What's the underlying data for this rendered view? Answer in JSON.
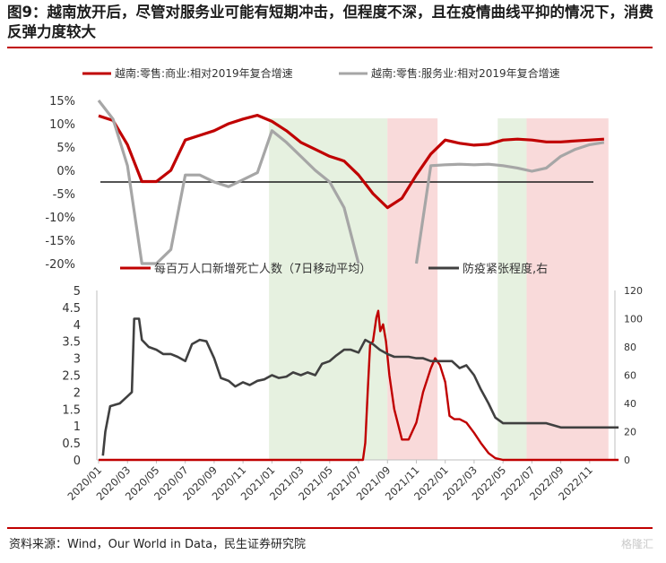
{
  "title": "图9：越南放开后，尽管对服务业可能有短期冲击，但程度不深，且在疫情曲线平抑的情况下，消费反弹力度较大",
  "source": "资料来源：Wind，Our World in Data，民生证券研究院",
  "watermark": "格隆汇",
  "colors": {
    "red": "#c00000",
    "gray": "#a6a6a6",
    "dark": "#404040",
    "green_band": "#e2efda",
    "red_band": "#f8d3d3",
    "accent": "#c00000"
  },
  "chart_data": [
    {
      "type": "line",
      "ylim": [
        -20,
        15
      ],
      "y_ticks": [
        "15%",
        "10%",
        "5%",
        "0%",
        "-5%",
        "-10%",
        "-15%",
        "-20%"
      ],
      "x_range": [
        "2020-01",
        "2022-12"
      ],
      "reference_line": -2.5,
      "series": [
        {
          "name": "越南:零售:商业:相对2019年复合增速",
          "color": "#c00000",
          "points": [
            [
              "2020-01",
              11.7
            ],
            [
              "2020-02",
              10.7
            ],
            [
              "2020-03",
              5.5
            ],
            [
              "2020-04",
              -2.4
            ],
            [
              "2020-05",
              -2.4
            ],
            [
              "2020-06",
              0
            ],
            [
              "2020-07",
              6.5
            ],
            [
              "2020-08",
              7.5
            ],
            [
              "2020-09",
              8.5
            ],
            [
              "2020-10",
              10
            ],
            [
              "2020-11",
              11
            ],
            [
              "2020-12",
              11.8
            ],
            [
              "2021-01",
              10.5
            ],
            [
              "2021-02",
              8.5
            ],
            [
              "2021-03",
              6
            ],
            [
              "2021-04",
              4.5
            ],
            [
              "2021-05",
              3
            ],
            [
              "2021-06",
              2
            ],
            [
              "2021-07",
              -1
            ],
            [
              "2021-08",
              -5
            ],
            [
              "2021-09",
              -8
            ],
            [
              "2021-10",
              -6
            ],
            [
              "2021-11",
              -1
            ],
            [
              "2021-12",
              3.5
            ],
            [
              "2022-01",
              6.5
            ],
            [
              "2022-02",
              5.8
            ],
            [
              "2022-03",
              5.4
            ],
            [
              "2022-04",
              5.6
            ],
            [
              "2022-05",
              6.5
            ],
            [
              "2022-06",
              6.7
            ],
            [
              "2022-07",
              6.5
            ],
            [
              "2022-08",
              6.1
            ],
            [
              "2022-09",
              6.1
            ],
            [
              "2022-10",
              6.3
            ],
            [
              "2022-11",
              6.5
            ],
            [
              "2022-12",
              6.7
            ]
          ]
        },
        {
          "name": "越南:零售:服务业:相对2019年复合增速",
          "color": "#a6a6a6",
          "points": [
            [
              "2020-01",
              15
            ],
            [
              "2020-02",
              11
            ],
            [
              "2020-03",
              1
            ],
            [
              "2020-04",
              -20
            ],
            [
              "2020-05",
              -20
            ],
            [
              "2020-06",
              -17
            ],
            [
              "2020-07",
              -1
            ],
            [
              "2020-08",
              -1
            ],
            [
              "2020-09",
              -2.5
            ],
            [
              "2020-10",
              -3.5
            ],
            [
              "2020-11",
              -2
            ],
            [
              "2020-12",
              -0.5
            ],
            [
              "2021-01",
              8.5
            ],
            [
              "2021-02",
              6
            ],
            [
              "2021-03",
              3
            ],
            [
              "2021-04",
              0
            ],
            [
              "2021-05",
              -2.5
            ],
            [
              "2021-06",
              -8
            ],
            [
              "2021-07",
              -20
            ],
            [
              "2021-11",
              -20
            ],
            [
              "2021-12",
              1
            ],
            [
              "2022-01",
              1.2
            ],
            [
              "2022-02",
              1.3
            ],
            [
              "2022-03",
              1.2
            ],
            [
              "2022-04",
              1.3
            ],
            [
              "2022-05",
              1
            ],
            [
              "2022-06",
              0.5
            ],
            [
              "2022-07",
              -0.2
            ],
            [
              "2022-08",
              0.5
            ],
            [
              "2022-09",
              3
            ],
            [
              "2022-10",
              4.5
            ],
            [
              "2022-11",
              5.5
            ],
            [
              "2022-12",
              6
            ]
          ]
        }
      ]
    },
    {
      "type": "line",
      "ylim_left": [
        0,
        5
      ],
      "ylim_right": [
        0,
        120
      ],
      "y_ticks_left": [
        "5",
        "4.5",
        "4",
        "3.5",
        "3",
        "2.5",
        "2",
        "1.5",
        "1",
        "0.5",
        "0"
      ],
      "y_ticks_right": [
        "120",
        "100",
        "80",
        "60",
        "40",
        "20",
        "0"
      ],
      "x_ticks": [
        "2020/01",
        "2020/03",
        "2020/05",
        "2020/07",
        "2020/09",
        "2020/11",
        "2021/01",
        "2021/03",
        "2021/05",
        "2021/07",
        "2021/09",
        "2021/11",
        "2022/01",
        "2022/03",
        "2022/05",
        "2022/07",
        "2022/09",
        "2022/11"
      ],
      "bands": [
        {
          "from": "2020-12-25",
          "to": "2021-09-01",
          "color": "green"
        },
        {
          "from": "2021-09-01",
          "to": "2021-12-15",
          "color": "red"
        },
        {
          "from": "2022-04-20",
          "to": "2022-06-20",
          "color": "green"
        },
        {
          "from": "2022-06-20",
          "to": "2022-12-10",
          "color": "red"
        }
      ],
      "series": [
        {
          "name": "每百万人口新增死亡人数（7日移动平均）",
          "axis": "left",
          "color": "#c00000",
          "points": [
            [
              "2020-01",
              0
            ],
            [
              "2020-07",
              0
            ],
            [
              "2021-07-10",
              0
            ],
            [
              "2021-07-15",
              0.5
            ],
            [
              "2021-07-20",
              2
            ],
            [
              "2021-07-25",
              3.4
            ],
            [
              "2021-08-01",
              3.5
            ],
            [
              "2021-08-08",
              4.2
            ],
            [
              "2021-08-12",
              4.4
            ],
            [
              "2021-08-16",
              3.8
            ],
            [
              "2021-08-22",
              4.0
            ],
            [
              "2021-08-28",
              3.5
            ],
            [
              "2021-09-05",
              2.5
            ],
            [
              "2021-09-15",
              1.5
            ],
            [
              "2021-10-01",
              0.6
            ],
            [
              "2021-10-15",
              0.6
            ],
            [
              "2021-11-01",
              1.1
            ],
            [
              "2021-11-15",
              2
            ],
            [
              "2021-12-01",
              2.7
            ],
            [
              "2021-12-10",
              3.0
            ],
            [
              "2021-12-20",
              2.8
            ],
            [
              "2022-01-01",
              2.3
            ],
            [
              "2022-01-10",
              1.3
            ],
            [
              "2022-01-20",
              1.2
            ],
            [
              "2022-02-01",
              1.2
            ],
            [
              "2022-02-15",
              1.1
            ],
            [
              "2022-03-01",
              0.8
            ],
            [
              "2022-03-15",
              0.5
            ],
            [
              "2022-04-01",
              0.2
            ],
            [
              "2022-04-15",
              0.05
            ],
            [
              "2022-05-01",
              0
            ],
            [
              "2022-12-31",
              0
            ]
          ]
        },
        {
          "name": "防疫紧张程度,右",
          "axis": "right",
          "color": "#404040",
          "points": [
            [
              "2020-01-10",
              3
            ],
            [
              "2020-01-15",
              20
            ],
            [
              "2020-01-25",
              38
            ],
            [
              "2020-02-15",
              40
            ],
            [
              "2020-03-01",
              45
            ],
            [
              "2020-03-10",
              48
            ],
            [
              "2020-03-15",
              100
            ],
            [
              "2020-03-25",
              100
            ],
            [
              "2020-04-01",
              85
            ],
            [
              "2020-04-15",
              80
            ],
            [
              "2020-05-01",
              78
            ],
            [
              "2020-05-15",
              75
            ],
            [
              "2020-06-01",
              75
            ],
            [
              "2020-06-15",
              73
            ],
            [
              "2020-07-01",
              70
            ],
            [
              "2020-07-15",
              82
            ],
            [
              "2020-08-01",
              85
            ],
            [
              "2020-08-15",
              84
            ],
            [
              "2020-09-01",
              72
            ],
            [
              "2020-09-15",
              58
            ],
            [
              "2020-10-01",
              56
            ],
            [
              "2020-10-15",
              52
            ],
            [
              "2020-11-01",
              55
            ],
            [
              "2020-11-15",
              53
            ],
            [
              "2020-12-01",
              56
            ],
            [
              "2020-12-15",
              57
            ],
            [
              "2021-01-01",
              60
            ],
            [
              "2021-01-15",
              58
            ],
            [
              "2021-02-01",
              59
            ],
            [
              "2021-02-15",
              62
            ],
            [
              "2021-03-01",
              60
            ],
            [
              "2021-03-15",
              62
            ],
            [
              "2021-04-01",
              60
            ],
            [
              "2021-04-15",
              68
            ],
            [
              "2021-05-01",
              70
            ],
            [
              "2021-05-15",
              74
            ],
            [
              "2021-06-01",
              78
            ],
            [
              "2021-06-15",
              78
            ],
            [
              "2021-07-01",
              76
            ],
            [
              "2021-07-15",
              85
            ],
            [
              "2021-08-01",
              82
            ],
            [
              "2021-08-15",
              78
            ],
            [
              "2021-09-01",
              75
            ],
            [
              "2021-09-15",
              73
            ],
            [
              "2021-10-01",
              73
            ],
            [
              "2021-10-15",
              73
            ],
            [
              "2021-11-01",
              72
            ],
            [
              "2021-11-15",
              72
            ],
            [
              "2021-12-01",
              70
            ],
            [
              "2021-12-15",
              70
            ],
            [
              "2022-01-01",
              70
            ],
            [
              "2022-01-15",
              70
            ],
            [
              "2022-02-01",
              65
            ],
            [
              "2022-02-15",
              67
            ],
            [
              "2022-03-01",
              60
            ],
            [
              "2022-03-15",
              50
            ],
            [
              "2022-04-01",
              40
            ],
            [
              "2022-04-15",
              30
            ],
            [
              "2022-05-01",
              26
            ],
            [
              "2022-07-01",
              26
            ],
            [
              "2022-08-01",
              26
            ],
            [
              "2022-09-01",
              23
            ],
            [
              "2022-12-31",
              23
            ]
          ]
        }
      ]
    }
  ]
}
